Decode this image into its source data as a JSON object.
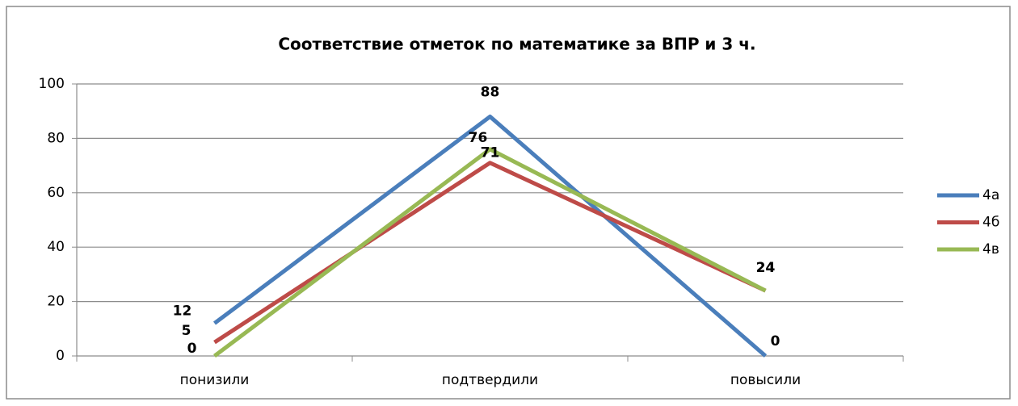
{
  "chart_data": {
    "type": "line",
    "title": "Соответствие отметок по математике за ВПР и 3 ч.",
    "categories": [
      "понизили",
      "подтвердили",
      "повысили"
    ],
    "series": [
      {
        "name": "4а",
        "color": "#4a7ebb",
        "values": [
          12,
          88,
          0
        ]
      },
      {
        "name": "4б",
        "color": "#be4b48",
        "values": [
          5,
          71,
          24
        ]
      },
      {
        "name": "4в",
        "color": "#98b954",
        "values": [
          0,
          76,
          24
        ]
      }
    ],
    "ylim": [
      0,
      100
    ],
    "yticks": [
      0,
      20,
      40,
      60,
      80,
      100
    ],
    "grid": true,
    "legend": "right"
  }
}
